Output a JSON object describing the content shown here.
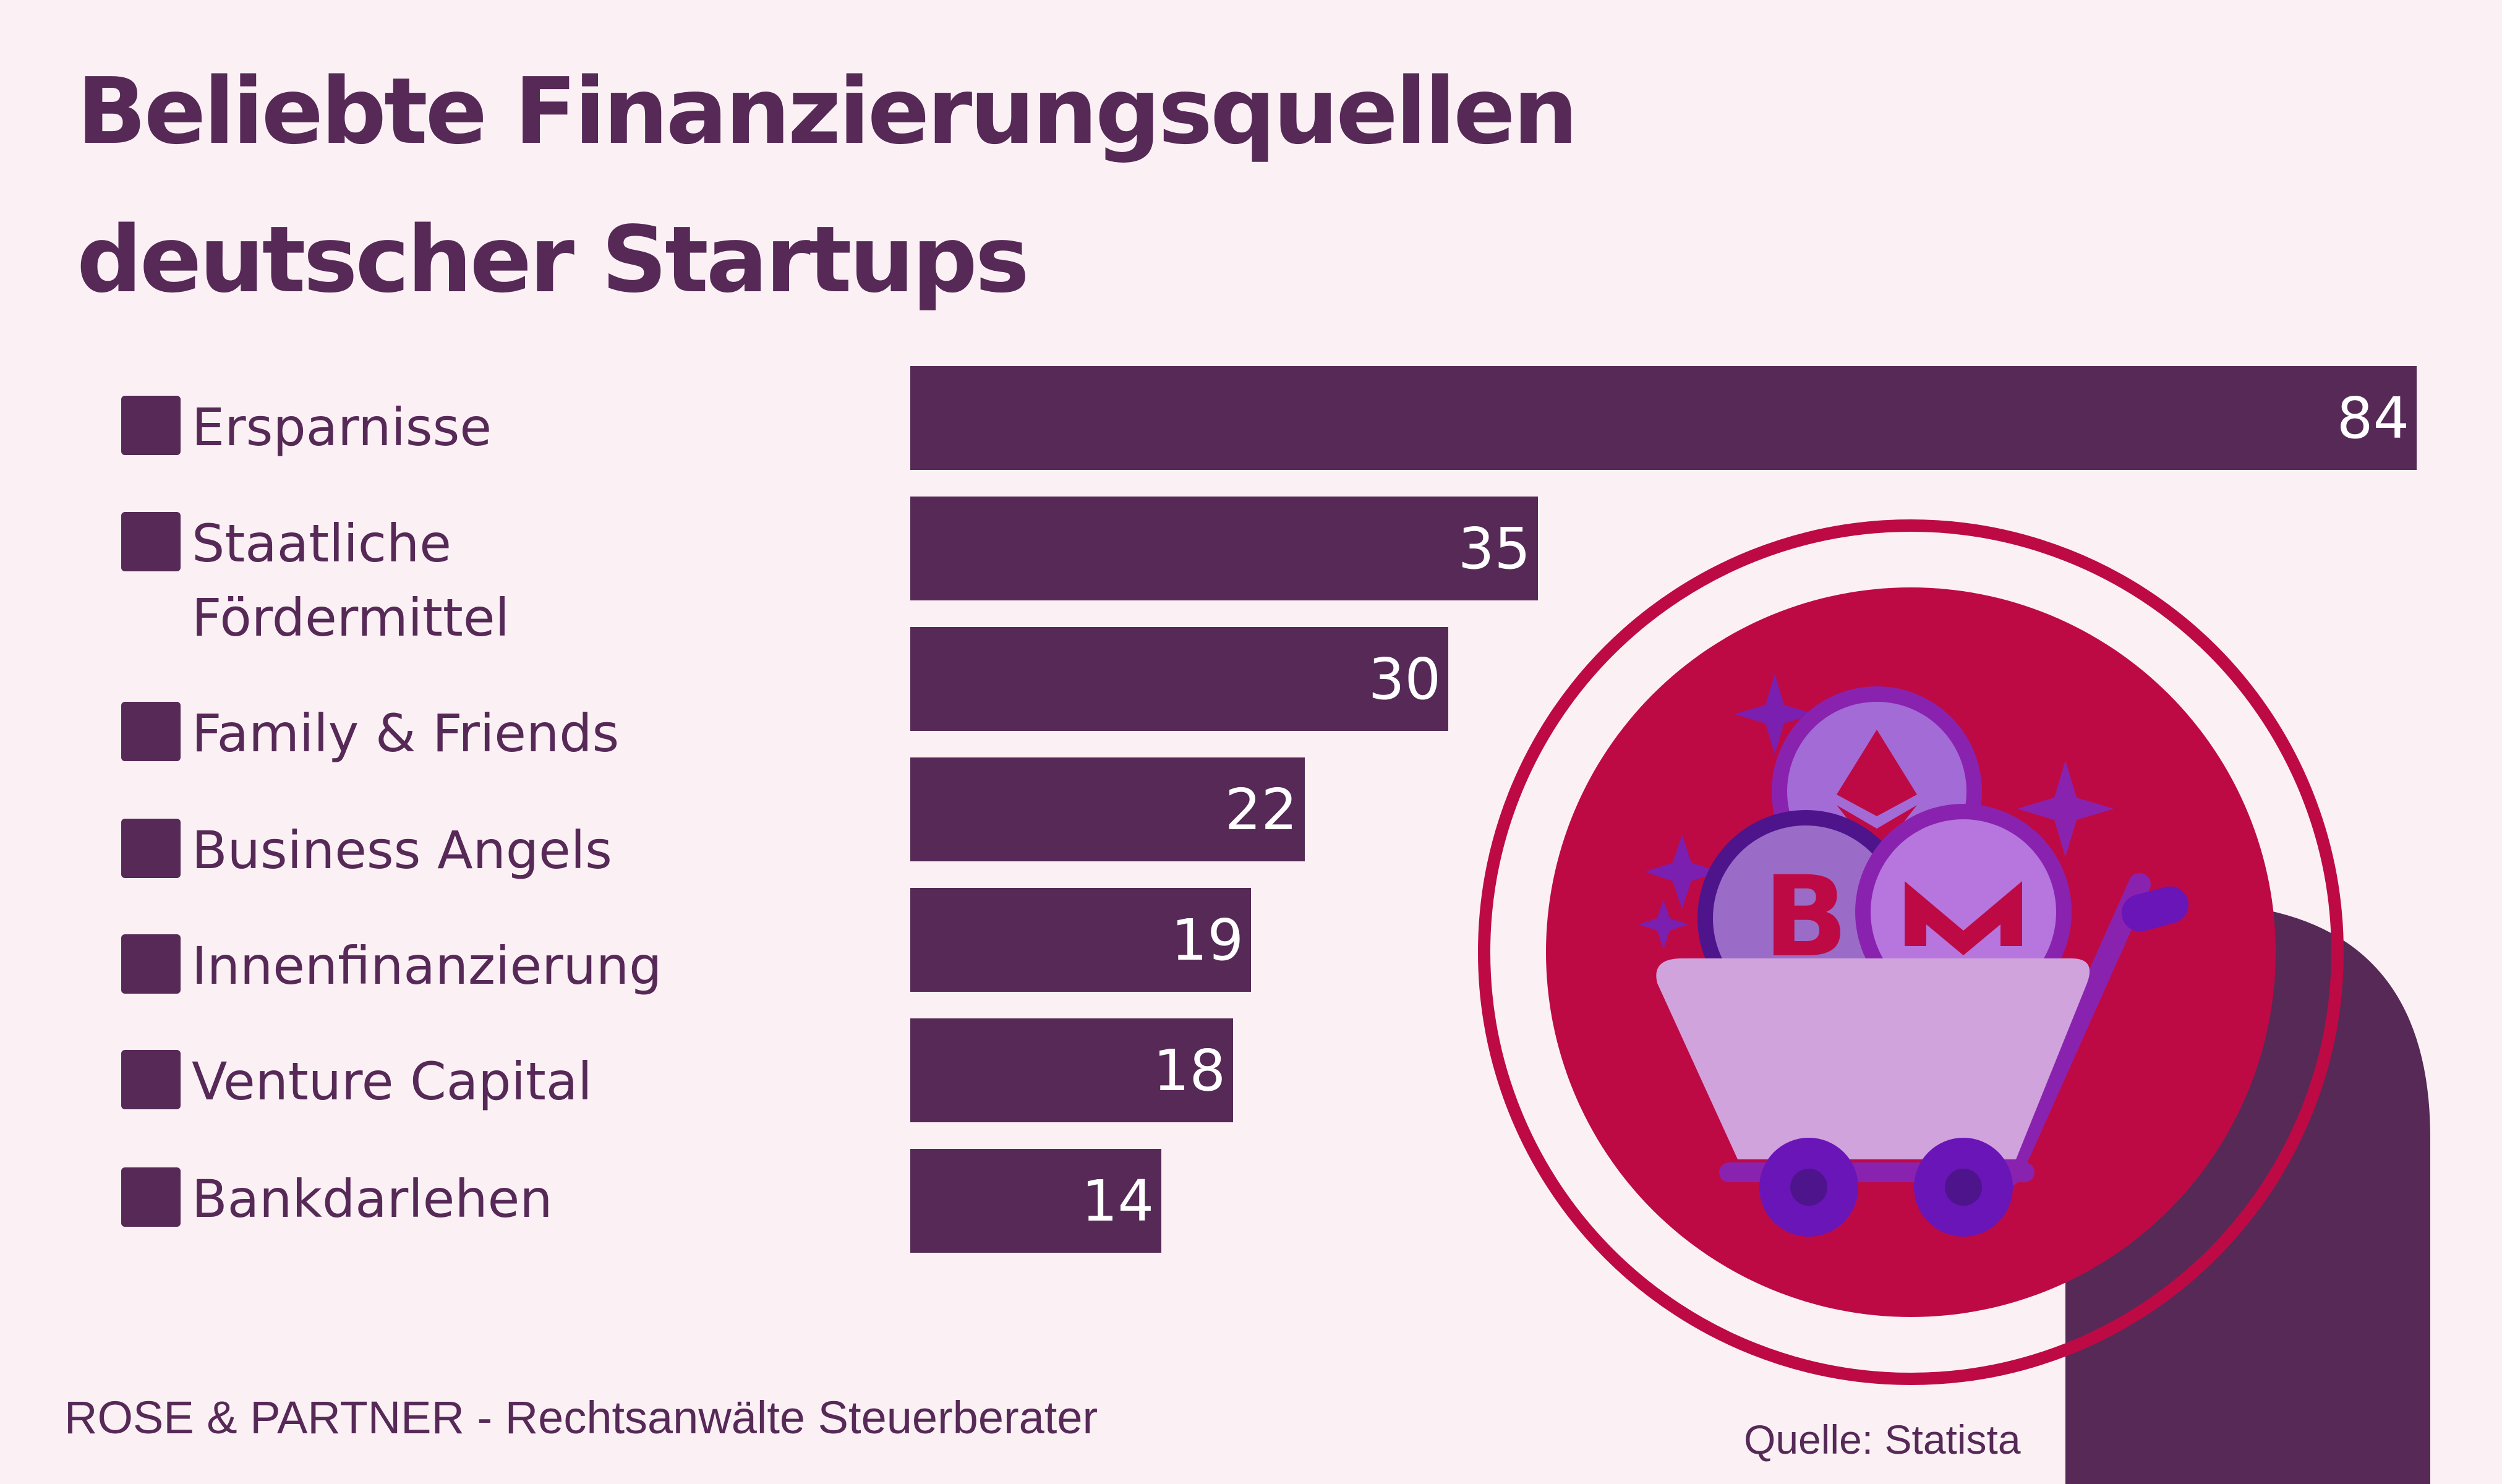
{
  "title": {
    "line1": "Beliebte Finanzierungsquellen",
    "line2": "deutscher Startups"
  },
  "chart_data": {
    "type": "bar",
    "orientation": "horizontal",
    "categories": [
      "Ersparnisse",
      "Staatliche Fördermittel",
      "Family & Friends",
      "Business Angels",
      "Innenfinanzierung",
      "Venture Capital",
      "Bankdarlehen"
    ],
    "category_lines": [
      [
        "Ersparnisse"
      ],
      [
        "Staatliche",
        "Fördermittel"
      ],
      [
        "Family & Friends"
      ],
      [
        "Business Angels"
      ],
      [
        "Innenfinanzierung"
      ],
      [
        "Venture Capital"
      ],
      [
        "Bankdarlehen"
      ]
    ],
    "values": [
      84,
      35,
      30,
      22,
      19,
      18,
      14
    ],
    "bar_color": "#562957",
    "legend_marker_color": "#562957",
    "data_labels": true,
    "grid": false,
    "xlim": [
      0,
      84
    ]
  },
  "footer": "ROSE & PARTNER - Rechtsanwälte Steuerberater",
  "source": "Quelle: Statista",
  "illustration": {
    "icons": [
      "shopping-cart-icon",
      "bitcoin-coin-icon",
      "ethereum-coin-icon",
      "monero-coin-icon",
      "sparkle-icon"
    ],
    "colors": {
      "circle": "#bd0a45",
      "ring": "#bd0a45",
      "cart": "#d0a3dd",
      "accent": "#8a22b0",
      "dark": "#562957"
    }
  }
}
